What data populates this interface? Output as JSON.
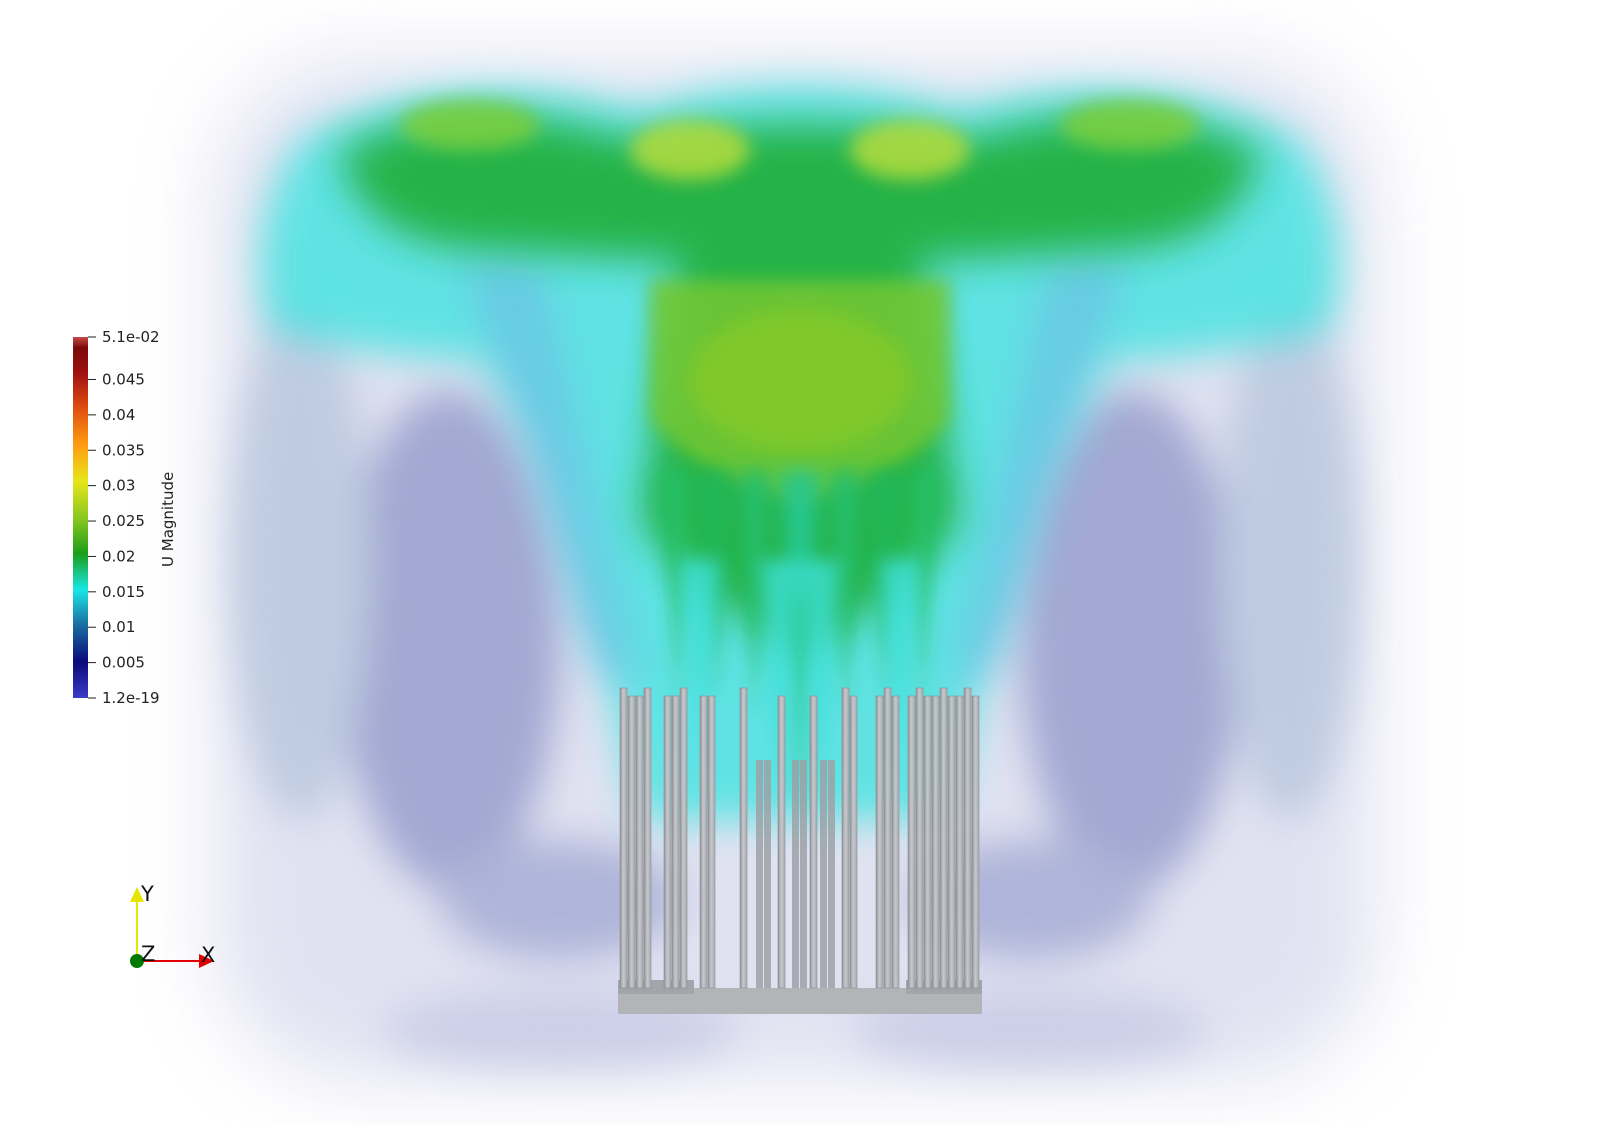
{
  "colorbar": {
    "title": "U Magnitude",
    "max_label": "5.1e-02",
    "min_label": "1.2e-19",
    "range": [
      1.2e-19,
      0.051
    ],
    "ticks": [
      {
        "value": 0.045,
        "label": "0.045"
      },
      {
        "value": 0.04,
        "label": "0.04"
      },
      {
        "value": 0.035,
        "label": "0.035"
      },
      {
        "value": 0.03,
        "label": "0.03"
      },
      {
        "value": 0.025,
        "label": "0.025"
      },
      {
        "value": 0.02,
        "label": "0.02"
      },
      {
        "value": 0.015,
        "label": "0.015"
      },
      {
        "value": 0.01,
        "label": "0.01"
      },
      {
        "value": 0.005,
        "label": "0.005"
      }
    ],
    "colormap": [
      "#3c3cc8",
      "#0a0a78",
      "#1a6aa0",
      "#19e6e6",
      "#1a9e1a",
      "#8cc81e",
      "#e6e61a",
      "#ff9e10",
      "#e05010",
      "#a01010",
      "#7a0a0a",
      "#c84a4a"
    ]
  },
  "orientation_axes": {
    "x_label": "X",
    "y_label": "Y",
    "z_label": "Z",
    "x_color": "#e00000",
    "y_color": "#e6e600",
    "z_color": "#007a00"
  },
  "scene": {
    "object_color": "#b4b6ba"
  }
}
